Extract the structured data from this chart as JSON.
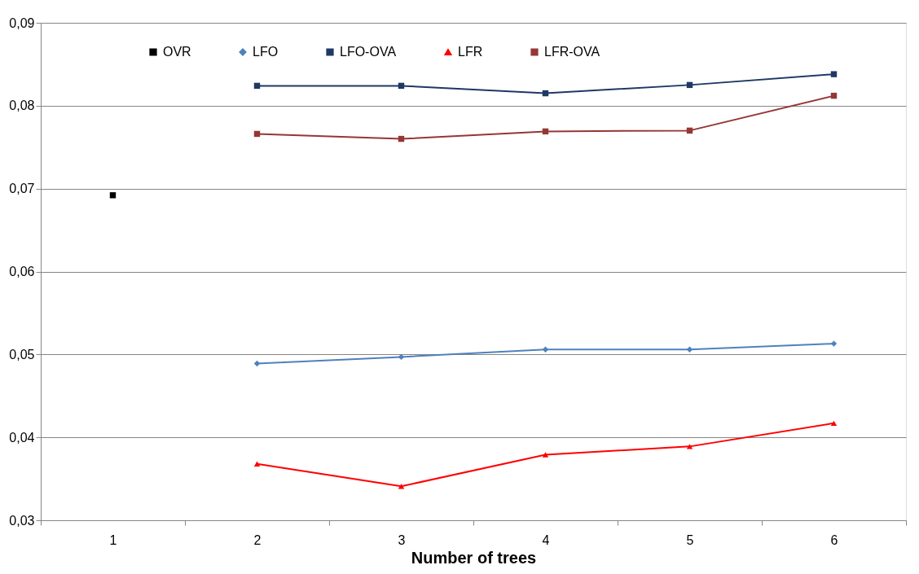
{
  "chart_data": {
    "type": "line",
    "xlabel": "Number of trees",
    "categories": [
      "1",
      "2",
      "3",
      "4",
      "5",
      "6"
    ],
    "ylim": [
      0.03,
      0.09
    ],
    "yticks": [
      {
        "value": 0.03,
        "label": "0,03"
      },
      {
        "value": 0.04,
        "label": "0,04"
      },
      {
        "value": 0.05,
        "label": "0,05"
      },
      {
        "value": 0.06,
        "label": "0,06"
      },
      {
        "value": 0.07,
        "label": "0,07"
      },
      {
        "value": 0.08,
        "label": "0,08"
      },
      {
        "value": 0.09,
        "label": "0,09"
      }
    ],
    "grid": "y",
    "legend": "top",
    "line_style": "solid",
    "series": [
      {
        "name": "OVR",
        "color": "#000000",
        "marker": "square",
        "values": [
          0.0692,
          null,
          null,
          null,
          null,
          null
        ]
      },
      {
        "name": "LFO",
        "color": "#4f81bd",
        "marker": "diamond",
        "values": [
          null,
          0.0489,
          0.0497,
          0.0506,
          0.0506,
          0.0513
        ]
      },
      {
        "name": "LFO-OVA",
        "color": "#1f3864",
        "marker": "square",
        "values": [
          null,
          0.0824,
          0.0824,
          0.0815,
          0.0825,
          0.0838
        ]
      },
      {
        "name": "LFR",
        "color": "#ff0000",
        "marker": "triangle",
        "values": [
          null,
          0.0368,
          0.0341,
          0.0379,
          0.0389,
          0.0417
        ]
      },
      {
        "name": "LFR-OVA",
        "color": "#953735",
        "marker": "square",
        "values": [
          null,
          0.0766,
          0.076,
          0.0769,
          0.077,
          0.0812
        ]
      }
    ]
  }
}
